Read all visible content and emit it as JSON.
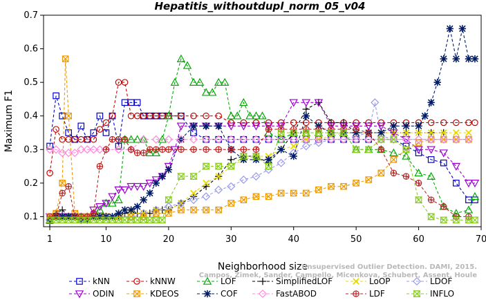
{
  "chart_data": {
    "type": "line",
    "title": "Hepatitis_withoutdupl_norm_05_v04",
    "xlabel": "Neighborhood size",
    "ylabel": "Maximum F1",
    "xlim": [
      0,
      70
    ],
    "ylim": [
      0.07,
      0.7
    ],
    "xticks": [
      1,
      10,
      20,
      30,
      40,
      50,
      60,
      70
    ],
    "yticks": [
      0.1,
      0.2,
      0.3,
      0.4,
      0.5,
      0.6,
      0.7
    ],
    "grid": false,
    "legend_position": "bottom",
    "watermark": [
      "Campos, Zimek, Sander, Campello, Micenkova, Schubert, Assent, Houle",
      "Unsupervised Outlier Detection. DAMI, 2015."
    ],
    "series": [
      {
        "name": "kNN",
        "color": "#0000cc",
        "marker": "square",
        "x": [
          1,
          2,
          3,
          4,
          5,
          6,
          7,
          8,
          9,
          10,
          11,
          12,
          13,
          14,
          15,
          16,
          17,
          18,
          19,
          20,
          22,
          24,
          26,
          28,
          30,
          32,
          34,
          36,
          38,
          40,
          42,
          44,
          46,
          48,
          50,
          52,
          54,
          56,
          58,
          60,
          62,
          64,
          66,
          68,
          69
        ],
        "y": [
          0.31,
          0.46,
          0.4,
          0.35,
          0.33,
          0.37,
          0.33,
          0.35,
          0.4,
          0.35,
          0.4,
          0.31,
          0.44,
          0.44,
          0.44,
          0.4,
          0.4,
          0.4,
          0.4,
          0.4,
          0.4,
          0.35,
          0.33,
          0.33,
          0.33,
          0.33,
          0.33,
          0.33,
          0.33,
          0.33,
          0.33,
          0.33,
          0.33,
          0.33,
          0.33,
          0.33,
          0.33,
          0.33,
          0.31,
          0.29,
          0.27,
          0.26,
          0.2,
          0.15,
          0.15
        ]
      },
      {
        "name": "kNNW",
        "color": "#cc0000",
        "marker": "circle",
        "x": [
          1,
          2,
          3,
          4,
          5,
          6,
          7,
          8,
          9,
          10,
          11,
          12,
          13,
          14,
          15,
          16,
          17,
          18,
          19,
          20,
          22,
          24,
          26,
          28,
          30,
          32,
          34,
          36,
          38,
          40,
          42,
          44,
          46,
          48,
          50,
          52,
          54,
          56,
          58,
          60,
          62,
          64,
          66,
          68,
          69
        ],
        "y": [
          0.23,
          0.36,
          0.33,
          0.33,
          0.33,
          0.33,
          0.33,
          0.33,
          0.36,
          0.38,
          0.4,
          0.5,
          0.5,
          0.4,
          0.4,
          0.4,
          0.4,
          0.4,
          0.4,
          0.4,
          0.4,
          0.4,
          0.4,
          0.4,
          0.38,
          0.38,
          0.38,
          0.38,
          0.38,
          0.38,
          0.38,
          0.38,
          0.38,
          0.38,
          0.38,
          0.38,
          0.38,
          0.38,
          0.38,
          0.38,
          0.38,
          0.38,
          0.38,
          0.38,
          0.38
        ]
      },
      {
        "name": "LOF",
        "color": "#00aa00",
        "marker": "triangle-up",
        "x": [
          1,
          2,
          3,
          4,
          5,
          6,
          7,
          8,
          9,
          10,
          11,
          12,
          13,
          14,
          15,
          16,
          17,
          18,
          19,
          20,
          21,
          22,
          23,
          24,
          25,
          26,
          27,
          28,
          29,
          30,
          31,
          32,
          33,
          34,
          35,
          36,
          38,
          40,
          42,
          44,
          46,
          48,
          50,
          52,
          54,
          56,
          58,
          60,
          62,
          64,
          66,
          68,
          69
        ],
        "y": [
          0.09,
          0.1,
          0.1,
          0.1,
          0.1,
          0.1,
          0.1,
          0.11,
          0.12,
          0.14,
          0.14,
          0.15,
          0.33,
          0.33,
          0.33,
          0.33,
          0.29,
          0.29,
          0.33,
          0.4,
          0.5,
          0.57,
          0.55,
          0.5,
          0.5,
          0.47,
          0.47,
          0.5,
          0.5,
          0.4,
          0.4,
          0.44,
          0.4,
          0.4,
          0.4,
          0.35,
          0.33,
          0.35,
          0.35,
          0.35,
          0.35,
          0.35,
          0.3,
          0.3,
          0.3,
          0.29,
          0.28,
          0.23,
          0.22,
          0.13,
          0.11,
          0.12,
          0.16
        ]
      },
      {
        "name": "SimplifiedLOF",
        "color": "#000000",
        "marker": "plus",
        "x": [
          1,
          2,
          3,
          4,
          5,
          6,
          7,
          8,
          9,
          10,
          11,
          12,
          13,
          14,
          15,
          16,
          17,
          18,
          19,
          20,
          22,
          24,
          26,
          28,
          30,
          32,
          34,
          36,
          38,
          40,
          42,
          44,
          46,
          48,
          50,
          52,
          54,
          56,
          58,
          60,
          62,
          64
        ],
        "y": [
          0.08,
          0.11,
          0.12,
          0.1,
          0.1,
          0.09,
          0.09,
          0.1,
          0.1,
          0.1,
          0.1,
          0.1,
          0.11,
          0.12,
          0.11,
          0.11,
          0.11,
          0.12,
          0.12,
          0.12,
          0.14,
          0.16,
          0.19,
          0.22,
          0.27,
          0.28,
          0.28,
          0.26,
          0.3,
          0.35,
          0.42,
          0.44,
          0.38,
          0.38,
          0.35,
          0.35,
          0.35,
          0.35,
          0.35,
          0.35,
          0.35,
          0.35
        ]
      },
      {
        "name": "LoOP",
        "color": "#e8d800",
        "marker": "x",
        "x": [
          1,
          2,
          3,
          4,
          5,
          6,
          7,
          8,
          9,
          10,
          12,
          14,
          16,
          18,
          20,
          22,
          24,
          26,
          28,
          30,
          32,
          34,
          36,
          38,
          40,
          42,
          44,
          46,
          48,
          50,
          52,
          54,
          56,
          58,
          60,
          62,
          64,
          66,
          68
        ],
        "y": [
          0.1,
          0.1,
          0.1,
          0.1,
          0.1,
          0.1,
          0.1,
          0.1,
          0.1,
          0.1,
          0.1,
          0.11,
          0.11,
          0.12,
          0.12,
          0.14,
          0.17,
          0.2,
          0.22,
          0.25,
          0.27,
          0.28,
          0.28,
          0.3,
          0.31,
          0.33,
          0.33,
          0.34,
          0.35,
          0.35,
          0.35,
          0.35,
          0.35,
          0.35,
          0.35,
          0.35,
          0.35,
          0.35,
          0.35
        ]
      },
      {
        "name": "LDOF",
        "color": "#9999ee",
        "marker": "diamond",
        "x": [
          1,
          2,
          3,
          4,
          5,
          6,
          7,
          8,
          9,
          10,
          12,
          14,
          16,
          18,
          20,
          22,
          24,
          26,
          28,
          30,
          32,
          34,
          36,
          38,
          40,
          42,
          44,
          46,
          48,
          50,
          52,
          53,
          54,
          56,
          58,
          60,
          62,
          64,
          66,
          68
        ],
        "y": [
          0.09,
          0.1,
          0.1,
          0.1,
          0.1,
          0.1,
          0.1,
          0.1,
          0.1,
          0.1,
          0.1,
          0.1,
          0.11,
          0.12,
          0.13,
          0.14,
          0.15,
          0.16,
          0.18,
          0.19,
          0.21,
          0.22,
          0.24,
          0.26,
          0.29,
          0.31,
          0.32,
          0.33,
          0.33,
          0.34,
          0.35,
          0.44,
          0.34,
          0.33,
          0.33,
          0.33,
          0.33,
          0.33,
          0.33,
          0.33
        ]
      },
      {
        "name": "ODIN",
        "color": "#9900cc",
        "marker": "triangle-down",
        "x": [
          1,
          2,
          3,
          4,
          5,
          6,
          7,
          8,
          9,
          10,
          11,
          12,
          13,
          14,
          15,
          16,
          17,
          18,
          19,
          20,
          21,
          22,
          24,
          26,
          28,
          30,
          32,
          34,
          36,
          38,
          40,
          42,
          44,
          46,
          48,
          50,
          52,
          54,
          56,
          58,
          60,
          62,
          64,
          66,
          68,
          69
        ],
        "y": [
          0.1,
          0.1,
          0.1,
          0.1,
          0.1,
          0.1,
          0.1,
          0.12,
          0.13,
          0.14,
          0.16,
          0.18,
          0.18,
          0.19,
          0.19,
          0.19,
          0.2,
          0.21,
          0.22,
          0.25,
          0.3,
          0.37,
          0.37,
          0.37,
          0.37,
          0.37,
          0.37,
          0.37,
          0.37,
          0.37,
          0.44,
          0.44,
          0.44,
          0.37,
          0.37,
          0.37,
          0.37,
          0.37,
          0.35,
          0.33,
          0.3,
          0.3,
          0.29,
          0.25,
          0.2,
          0.2
        ]
      },
      {
        "name": "KDEOS",
        "color": "#ee9900",
        "marker": "square-x",
        "x": [
          1,
          2,
          3,
          3.5,
          4,
          5,
          6,
          7,
          8,
          9,
          10,
          12,
          14,
          16,
          18,
          20,
          22,
          24,
          26,
          28,
          30,
          32,
          34,
          36,
          38,
          40,
          42,
          44,
          46,
          48,
          50,
          52,
          54,
          56,
          58,
          60,
          62,
          64,
          66,
          68
        ],
        "y": [
          0.1,
          0.11,
          0.2,
          0.57,
          0.4,
          0.11,
          0.1,
          0.1,
          0.1,
          0.1,
          0.1,
          0.1,
          0.1,
          0.1,
          0.11,
          0.11,
          0.12,
          0.12,
          0.12,
          0.12,
          0.14,
          0.15,
          0.16,
          0.16,
          0.17,
          0.17,
          0.17,
          0.18,
          0.19,
          0.19,
          0.2,
          0.21,
          0.23,
          0.27,
          0.3,
          0.32,
          0.33,
          0.33,
          0.33,
          0.33
        ]
      },
      {
        "name": "COF",
        "color": "#001a66",
        "marker": "asterisk",
        "x": [
          1,
          2,
          3,
          4,
          5,
          6,
          7,
          8,
          9,
          10,
          11,
          12,
          13,
          14,
          15,
          16,
          17,
          18,
          19,
          20,
          22,
          24,
          26,
          28,
          30,
          32,
          34,
          36,
          38,
          40,
          42,
          44,
          46,
          48,
          50,
          52,
          54,
          56,
          58,
          60,
          61,
          62,
          63,
          64,
          65,
          66,
          67,
          68,
          69
        ],
        "y": [
          0.09,
          0.1,
          0.1,
          0.1,
          0.1,
          0.09,
          0.09,
          0.1,
          0.1,
          0.1,
          0.1,
          0.11,
          0.12,
          0.12,
          0.13,
          0.15,
          0.17,
          0.2,
          0.22,
          0.24,
          0.33,
          0.37,
          0.37,
          0.37,
          0.3,
          0.27,
          0.27,
          0.27,
          0.3,
          0.28,
          0.4,
          0.37,
          0.35,
          0.35,
          0.35,
          0.35,
          0.35,
          0.37,
          0.37,
          0.37,
          0.4,
          0.44,
          0.5,
          0.57,
          0.66,
          0.57,
          0.66,
          0.57,
          0.57
        ]
      },
      {
        "name": "FastABOD",
        "color": "#ff88dd",
        "marker": "diamond",
        "x": [
          1,
          2,
          3,
          4,
          5,
          6,
          7,
          8,
          9,
          10,
          12,
          14,
          16,
          18,
          20,
          22,
          24,
          26,
          28,
          30,
          32,
          34,
          36,
          38,
          40,
          42,
          44,
          46,
          48,
          50,
          52,
          54,
          56,
          58,
          60,
          62,
          64,
          66,
          68
        ],
        "y": [
          0.3,
          0.3,
          0.29,
          0.29,
          0.29,
          0.3,
          0.3,
          0.3,
          0.3,
          0.3,
          0.3,
          0.3,
          0.33,
          0.33,
          0.33,
          0.33,
          0.33,
          0.33,
          0.33,
          0.33,
          0.33,
          0.33,
          0.33,
          0.33,
          0.33,
          0.33,
          0.33,
          0.33,
          0.33,
          0.33,
          0.33,
          0.33,
          0.33,
          0.33,
          0.33,
          0.33,
          0.33,
          0.33,
          0.33
        ]
      },
      {
        "name": "LDF",
        "color": "#bb2222",
        "marker": "circle-plus",
        "x": [
          1,
          2,
          3,
          4,
          5,
          6,
          7,
          8,
          9,
          10,
          11,
          12,
          13,
          14,
          15,
          16,
          17,
          18,
          19,
          20,
          22,
          24,
          26,
          28,
          30,
          32,
          34,
          36,
          38,
          40,
          42,
          44,
          46,
          48,
          50,
          52,
          54,
          56,
          58,
          60,
          62,
          64,
          66,
          68
        ],
        "y": [
          0.1,
          0.1,
          0.17,
          0.19,
          0.1,
          0.1,
          0.1,
          0.11,
          0.25,
          0.3,
          0.33,
          0.33,
          0.33,
          0.3,
          0.29,
          0.29,
          0.3,
          0.3,
          0.3,
          0.3,
          0.3,
          0.3,
          0.3,
          0.3,
          0.3,
          0.3,
          0.3,
          0.36,
          0.36,
          0.36,
          0.36,
          0.36,
          0.36,
          0.36,
          0.36,
          0.35,
          0.3,
          0.23,
          0.22,
          0.2,
          0.15,
          0.13,
          0.1,
          0.1
        ]
      },
      {
        "name": "INFLO",
        "color": "#88cc22",
        "marker": "hourglass",
        "x": [
          1,
          2,
          3,
          4,
          5,
          6,
          7,
          8,
          9,
          10,
          11,
          12,
          13,
          14,
          15,
          16,
          17,
          18,
          19,
          20,
          22,
          24,
          26,
          28,
          30,
          32,
          34,
          36,
          38,
          40,
          42,
          44,
          46,
          48,
          50,
          52,
          54,
          56,
          58,
          60,
          62,
          64,
          66,
          68,
          69
        ],
        "y": [
          0.09,
          0.09,
          0.09,
          0.09,
          0.09,
          0.09,
          0.09,
          0.09,
          0.09,
          0.09,
          0.09,
          0.09,
          0.09,
          0.09,
          0.09,
          0.09,
          0.09,
          0.09,
          0.09,
          0.15,
          0.22,
          0.22,
          0.25,
          0.25,
          0.25,
          0.28,
          0.28,
          0.25,
          0.35,
          0.35,
          0.35,
          0.35,
          0.35,
          0.35,
          0.3,
          0.3,
          0.33,
          0.33,
          0.3,
          0.15,
          0.1,
          0.09,
          0.09,
          0.09,
          0.09
        ]
      }
    ]
  }
}
